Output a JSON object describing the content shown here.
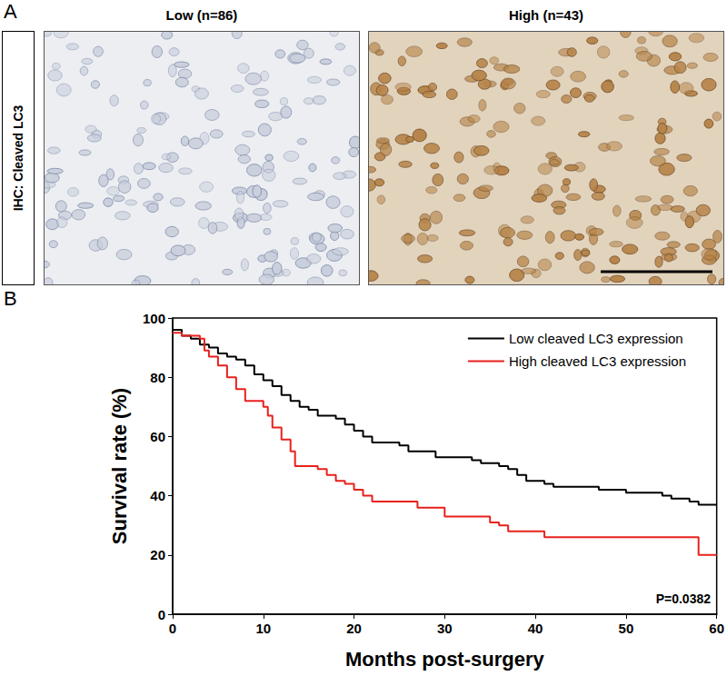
{
  "panel_labels": [
    "A",
    "B"
  ],
  "images": {
    "row_label": "IHC: Cleaved LC3",
    "panels": [
      {
        "title": "Low (n=86)"
      },
      {
        "title": "High (n=43)"
      }
    ]
  },
  "chart_data": {
    "type": "line",
    "line_style": "step",
    "xlabel": "Months post-surgery",
    "ylabel": "Survival rate (%)",
    "xlim": [
      0,
      60
    ],
    "xticks": [
      0,
      10,
      20,
      30,
      40,
      50,
      60
    ],
    "ylim": [
      0,
      100
    ],
    "yticks": [
      0,
      20,
      40,
      60,
      80,
      100
    ],
    "legend": "upper right",
    "grid": false,
    "annotation": "P=0.0382",
    "series": [
      {
        "name": "Low cleaved LC3 expression",
        "color": "#000000",
        "x": [
          0,
          1,
          2,
          3,
          4,
          5,
          6,
          7,
          8,
          9,
          10,
          11,
          12,
          13,
          14,
          15,
          16,
          18,
          19,
          20,
          21,
          22,
          25,
          26,
          29,
          33,
          34,
          36,
          37,
          38,
          39,
          41,
          42,
          47,
          50,
          54,
          55,
          57,
          58,
          60
        ],
        "values": [
          96,
          94,
          93,
          91,
          90,
          88,
          87,
          86,
          84,
          81,
          79,
          77,
          74,
          72,
          70,
          69,
          67,
          66,
          64,
          62,
          60,
          58,
          57,
          55,
          53,
          52,
          51,
          50,
          49,
          47,
          45,
          44,
          43,
          42,
          41,
          40,
          39,
          38,
          37,
          37
        ]
      },
      {
        "name": "High cleaved LC3 expression",
        "color": "#e8211c",
        "x": [
          0,
          1,
          3,
          3.5,
          4,
          5,
          6,
          7,
          8,
          10,
          10.5,
          11,
          12,
          13,
          13.5,
          16,
          17,
          18,
          19,
          20,
          21,
          22,
          27,
          30,
          35,
          36,
          37,
          41,
          58,
          60
        ],
        "values": [
          95,
          94,
          93,
          89,
          87,
          84,
          80,
          76,
          72,
          70,
          67,
          63,
          59,
          55,
          50,
          49,
          47,
          45,
          44,
          42,
          40,
          38,
          36,
          33,
          31,
          30,
          28,
          26,
          20,
          20
        ]
      }
    ]
  }
}
